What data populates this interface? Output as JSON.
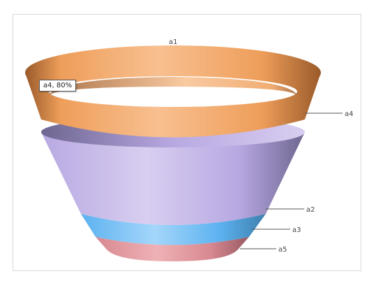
{
  "chart_data": {
    "type": "funnel",
    "title": "",
    "segments": [
      {
        "label": "a4",
        "color_dark": "#9a5a2a",
        "color_light": "#f8c090",
        "color_mid": "#ee9e5a"
      },
      {
        "label": "a2",
        "color_dark": "#6e6690",
        "color_light": "#d8cef0",
        "color_mid": "#b8a8e2"
      },
      {
        "label": "a3",
        "color_dark": "#3f7fae",
        "color_light": "#a4d6fa",
        "color_mid": "#5cb2f0"
      },
      {
        "label": "a5",
        "color_dark": "#985a62",
        "color_light": "#eeb2b6",
        "color_mid": "#d88890"
      }
    ],
    "top_label": "a1",
    "tooltip": {
      "segment": "a4",
      "text": "a4, 80%",
      "percent": 80
    }
  }
}
